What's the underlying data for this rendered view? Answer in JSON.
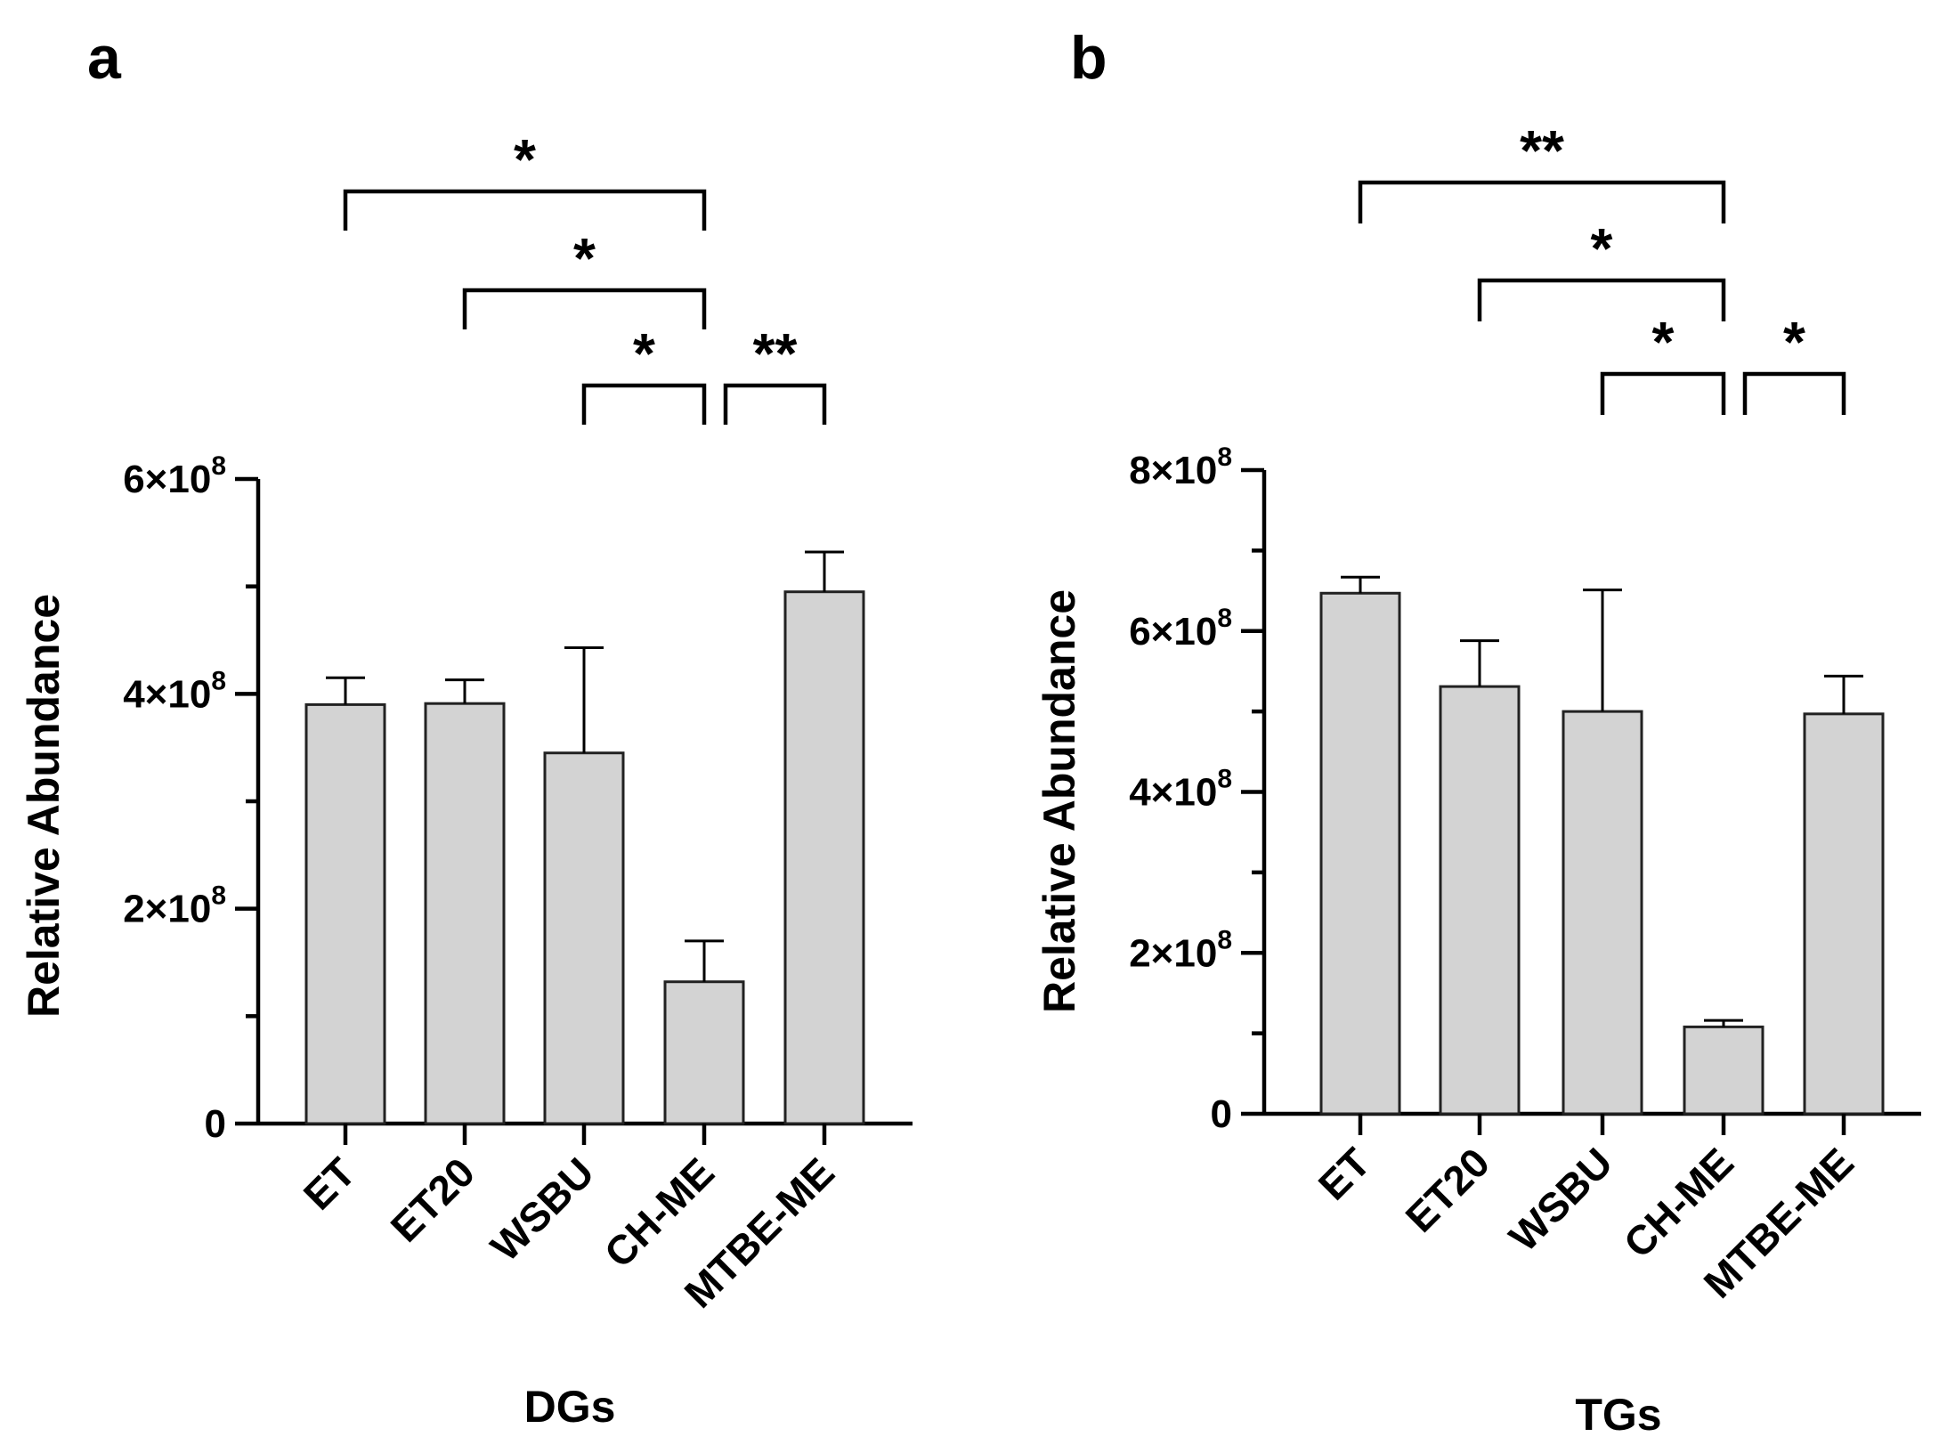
{
  "chart_data": [
    {
      "panel": "a",
      "type": "bar",
      "title": "",
      "xlabel": "DGs",
      "ylabel": "Relative Abundance",
      "categories": [
        "ET",
        "ET20",
        "WSBU",
        "CH-ME",
        "MTBE-ME"
      ],
      "values": [
        390000000,
        391000000,
        345000000,
        132000000,
        495000000
      ],
      "errors": [
        25000000,
        22000000,
        98000000,
        38000000,
        37000000
      ],
      "ylim": [
        0,
        600000000
      ],
      "yticks": [
        {
          "value": 0,
          "mantissa": "0",
          "exp": ""
        },
        {
          "value": 200000000,
          "mantissa": "2×10",
          "exp": "8"
        },
        {
          "value": 400000000,
          "mantissa": "4×10",
          "exp": "8"
        },
        {
          "value": 600000000,
          "mantissa": "6×10",
          "exp": "8"
        }
      ],
      "comparisons": [
        {
          "from": 0,
          "to": 3,
          "label": "*",
          "level": 3
        },
        {
          "from": 1,
          "to": 3,
          "label": "*",
          "level": 2
        },
        {
          "from": 2,
          "to": 3,
          "label": "*",
          "level": 1
        },
        {
          "from": 3,
          "to": 4,
          "label": "**",
          "level": 1
        }
      ]
    },
    {
      "panel": "b",
      "type": "bar",
      "title": "",
      "xlabel": "TGs",
      "ylabel": "Relative Abundance",
      "categories": [
        "ET",
        "ET20",
        "WSBU",
        "CH-ME",
        "MTBE-ME"
      ],
      "values": [
        647000000,
        531000000,
        500000000,
        108000000,
        497000000
      ],
      "errors": [
        20000000,
        57000000,
        151000000,
        8000000,
        47000000
      ],
      "ylim": [
        0,
        800000000
      ],
      "yticks": [
        {
          "value": 0,
          "mantissa": "0",
          "exp": ""
        },
        {
          "value": 200000000,
          "mantissa": "2×10",
          "exp": "8"
        },
        {
          "value": 400000000,
          "mantissa": "4×10",
          "exp": "8"
        },
        {
          "value": 600000000,
          "mantissa": "6×10",
          "exp": "8"
        },
        {
          "value": 800000000,
          "mantissa": "8×10",
          "exp": "8"
        }
      ],
      "comparisons": [
        {
          "from": 0,
          "to": 3,
          "label": "**",
          "level": 3
        },
        {
          "from": 1,
          "to": 3,
          "label": "*",
          "level": 2
        },
        {
          "from": 2,
          "to": 3,
          "label": "*",
          "level": 1
        },
        {
          "from": 3,
          "to": 4,
          "label": "*",
          "level": 1
        }
      ]
    }
  ],
  "colors": {
    "bar_fill": "#d3d3d3",
    "stroke": "#000000"
  }
}
